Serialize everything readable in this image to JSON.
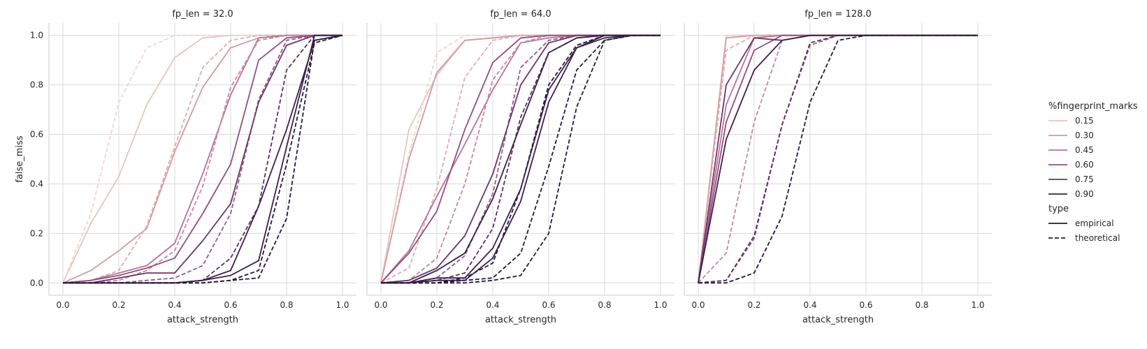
{
  "chart_data": {
    "type": "line",
    "facet_label": "fp_len",
    "xlabel": "attack_strength",
    "ylabel": "false_miss",
    "xlim": [
      -0.05,
      1.05
    ],
    "ylim": [
      -0.05,
      1.05
    ],
    "xticks": [
      0.0,
      0.2,
      0.4,
      0.6,
      0.8,
      1.0
    ],
    "yticks": [
      0.0,
      0.2,
      0.4,
      0.6,
      0.8,
      1.0
    ],
    "grid": true,
    "x": [
      0.0,
      0.1,
      0.2,
      0.3,
      0.4,
      0.5,
      0.6,
      0.7,
      0.8,
      0.9,
      1.0
    ],
    "hue_colors": {
      "0.15": "#e8c4c2",
      "0.30": "#d49aa4",
      "0.45": "#b97394",
      "0.60": "#924f7f",
      "0.75": "#6a3669",
      "0.90": "#3d1f4b"
    },
    "theoretical_colors": {
      "0.15": "#efd6d3",
      "0.30": "#dcaeb5",
      "0.45": "#c288a4",
      "0.60": "#975a86",
      "0.75": "#5c3061",
      "0.90": "#231a3a"
    },
    "panels": [
      {
        "title": "fp_len = 32.0",
        "series": [
          {
            "fingerprint_marks": "0.15",
            "type": "empirical",
            "values": [
              0,
              0.24,
              0.43,
              0.72,
              0.91,
              0.99,
              1.0,
              1.0,
              1.0,
              1.0,
              1.0
            ]
          },
          {
            "fingerprint_marks": "0.15",
            "type": "theoretical",
            "values": [
              0,
              0.28,
              0.73,
              0.95,
              1.0,
              1.0,
              1.0,
              1.0,
              1.0,
              1.0,
              1.0
            ]
          },
          {
            "fingerprint_marks": "0.30",
            "type": "empirical",
            "values": [
              0,
              0.05,
              0.13,
              0.22,
              0.53,
              0.79,
              0.95,
              0.99,
              1.0,
              1.0,
              1.0
            ]
          },
          {
            "fingerprint_marks": "0.30",
            "type": "theoretical",
            "values": [
              0,
              0.01,
              0.05,
              0.23,
              0.55,
              0.87,
              0.98,
              1.0,
              1.0,
              1.0,
              1.0
            ]
          },
          {
            "fingerprint_marks": "0.45",
            "type": "empirical",
            "values": [
              0,
              0.01,
              0.04,
              0.07,
              0.16,
              0.44,
              0.76,
              0.99,
              1.0,
              1.0,
              1.0
            ]
          },
          {
            "fingerprint_marks": "0.45",
            "type": "theoretical",
            "values": [
              0,
              0.0,
              0.01,
              0.05,
              0.13,
              0.39,
              0.79,
              0.98,
              1.0,
              1.0,
              1.0
            ]
          },
          {
            "fingerprint_marks": "0.60",
            "type": "empirical",
            "values": [
              0,
              0.01,
              0.03,
              0.06,
              0.1,
              0.28,
              0.48,
              0.9,
              0.99,
              1.0,
              1.0
            ]
          },
          {
            "fingerprint_marks": "0.60",
            "type": "theoretical",
            "values": [
              0,
              0.0,
              0.0,
              0.01,
              0.02,
              0.07,
              0.28,
              0.74,
              0.98,
              1.0,
              1.0
            ]
          },
          {
            "fingerprint_marks": "0.75",
            "type": "empirical",
            "values": [
              0,
              0.0,
              0.02,
              0.04,
              0.04,
              0.17,
              0.32,
              0.73,
              0.96,
              1.0,
              1.0
            ]
          },
          {
            "fingerprint_marks": "0.75",
            "type": "theoretical",
            "values": [
              0,
              0.0,
              0.0,
              0.0,
              0.0,
              0.01,
              0.1,
              0.31,
              0.86,
              1.0,
              1.0
            ]
          },
          {
            "fingerprint_marks": "0.90",
            "type": "empirical",
            "values": [
              0,
              0.0,
              0.0,
              0.0,
              0.0,
              0.01,
              0.05,
              0.31,
              0.62,
              0.98,
              1.0
            ]
          },
          {
            "fingerprint_marks": "0.90",
            "type": "theoretical",
            "values": [
              0,
              0.0,
              0.0,
              0.0,
              0.0,
              0.0,
              0.01,
              0.05,
              0.48,
              0.97,
              1.0
            ]
          },
          {
            "fingerprint_marks": "0.90",
            "type": "empirical",
            "values": [
              0,
              0.0,
              0.0,
              0.0,
              0.0,
              0.01,
              0.03,
              0.09,
              0.55,
              1.0,
              1.0
            ]
          },
          {
            "fingerprint_marks": "0.90",
            "type": "theoretical",
            "values": [
              0,
              0.0,
              0.0,
              0.0,
              0.0,
              0.0,
              0.01,
              0.02,
              0.26,
              0.98,
              1.0
            ]
          }
        ]
      },
      {
        "title": "fp_len = 64.0",
        "series": [
          {
            "fingerprint_marks": "0.15",
            "type": "empirical",
            "values": [
              0,
              0.62,
              0.84,
              0.98,
              0.99,
              1.0,
              1.0,
              1.0,
              1.0,
              1.0,
              1.0
            ]
          },
          {
            "fingerprint_marks": "0.15",
            "type": "theoretical",
            "values": [
              0,
              0.52,
              0.93,
              1.0,
              1.0,
              1.0,
              1.0,
              1.0,
              1.0,
              1.0,
              1.0
            ]
          },
          {
            "fingerprint_marks": "0.30",
            "type": "empirical",
            "values": [
              0,
              0.5,
              0.85,
              0.98,
              0.99,
              1.0,
              1.0,
              1.0,
              1.0,
              1.0,
              1.0
            ]
          },
          {
            "fingerprint_marks": "0.30",
            "type": "theoretical",
            "values": [
              0,
              0.06,
              0.38,
              0.83,
              0.98,
              1.0,
              1.0,
              1.0,
              1.0,
              1.0,
              1.0
            ]
          },
          {
            "fingerprint_marks": "0.45",
            "type": "empirical",
            "values": [
              0,
              0.13,
              0.35,
              0.56,
              0.78,
              0.97,
              0.99,
              1.0,
              1.0,
              1.0,
              1.0
            ]
          },
          {
            "fingerprint_marks": "0.45",
            "type": "theoretical",
            "values": [
              0,
              0.01,
              0.1,
              0.4,
              0.82,
              0.97,
              1.0,
              1.0,
              1.0,
              1.0,
              1.0
            ]
          },
          {
            "fingerprint_marks": "0.60",
            "type": "empirical",
            "values": [
              0,
              0.12,
              0.29,
              0.62,
              0.89,
              0.99,
              1.0,
              1.0,
              1.0,
              1.0,
              1.0
            ]
          },
          {
            "fingerprint_marks": "0.60",
            "type": "theoretical",
            "values": [
              0,
              0.0,
              0.02,
              0.11,
              0.36,
              0.87,
              0.98,
              1.0,
              1.0,
              1.0,
              1.0
            ]
          },
          {
            "fingerprint_marks": "0.75",
            "type": "empirical",
            "values": [
              0,
              0.01,
              0.06,
              0.19,
              0.44,
              0.8,
              0.97,
              1.0,
              1.0,
              1.0,
              1.0
            ]
          },
          {
            "fingerprint_marks": "0.75",
            "type": "theoretical",
            "values": [
              0,
              0.0,
              0.01,
              0.04,
              0.22,
              0.67,
              0.93,
              0.99,
              1.0,
              1.0,
              1.0
            ]
          },
          {
            "fingerprint_marks": "0.90",
            "type": "empirical",
            "values": [
              0,
              0.0,
              0.05,
              0.12,
              0.34,
              0.64,
              0.93,
              0.99,
              1.0,
              1.0,
              1.0
            ]
          },
          {
            "fingerprint_marks": "0.90",
            "type": "theoretical",
            "values": [
              0,
              0.0,
              0.0,
              0.02,
              0.08,
              0.38,
              0.8,
              0.96,
              1.0,
              1.0,
              1.0
            ]
          },
          {
            "fingerprint_marks": "0.90",
            "type": "empirical",
            "values": [
              0,
              0.0,
              0.02,
              0.02,
              0.14,
              0.38,
              0.78,
              0.95,
              1.0,
              1.0,
              1.0
            ]
          },
          {
            "fingerprint_marks": "0.90",
            "type": "theoretical",
            "values": [
              0,
              0.0,
              0.0,
              0.01,
              0.02,
              0.12,
              0.47,
              0.86,
              0.98,
              1.0,
              1.0
            ]
          },
          {
            "fingerprint_marks": "0.90",
            "type": "empirical",
            "values": [
              0,
              0.0,
              0.01,
              0.01,
              0.1,
              0.33,
              0.73,
              0.95,
              0.99,
              1.0,
              1.0
            ]
          },
          {
            "fingerprint_marks": "0.90",
            "type": "theoretical",
            "values": [
              0,
              0.0,
              0.0,
              0.0,
              0.01,
              0.03,
              0.2,
              0.71,
              0.98,
              1.0,
              1.0
            ]
          }
        ]
      },
      {
        "title": "fp_len = 128.0",
        "series": [
          {
            "fingerprint_marks": "0.15",
            "type": "empirical",
            "values": [
              0,
              1.0,
              1.0,
              1.0,
              1.0,
              1.0,
              1.0,
              1.0,
              1.0,
              1.0,
              1.0
            ]
          },
          {
            "fingerprint_marks": "0.15",
            "type": "theoretical",
            "values": [
              0,
              1.0,
              1.0,
              1.0,
              1.0,
              1.0,
              1.0,
              1.0,
              1.0,
              1.0,
              1.0
            ]
          },
          {
            "fingerprint_marks": "0.30",
            "type": "empirical",
            "values": [
              0,
              0.99,
              1.0,
              1.0,
              1.0,
              1.0,
              1.0,
              1.0,
              1.0,
              1.0,
              1.0
            ]
          },
          {
            "fingerprint_marks": "0.30",
            "type": "theoretical",
            "values": [
              0,
              0.94,
              1.0,
              1.0,
              1.0,
              1.0,
              1.0,
              1.0,
              1.0,
              1.0,
              1.0
            ]
          },
          {
            "fingerprint_marks": "0.45",
            "type": "empirical",
            "values": [
              0,
              0.72,
              0.99,
              1.0,
              1.0,
              1.0,
              1.0,
              1.0,
              1.0,
              1.0,
              1.0
            ]
          },
          {
            "fingerprint_marks": "0.45",
            "type": "theoretical",
            "values": [
              0,
              0.12,
              0.65,
              0.98,
              1.0,
              1.0,
              1.0,
              1.0,
              1.0,
              1.0,
              1.0
            ]
          },
          {
            "fingerprint_marks": "0.60",
            "type": "empirical",
            "values": [
              0,
              0.65,
              0.94,
              1.0,
              1.0,
              1.0,
              1.0,
              1.0,
              1.0,
              1.0,
              1.0
            ]
          },
          {
            "fingerprint_marks": "0.60",
            "type": "theoretical",
            "values": [
              0,
              0.01,
              0.18,
              0.64,
              0.96,
              1.0,
              1.0,
              1.0,
              1.0,
              1.0,
              1.0
            ]
          },
          {
            "fingerprint_marks": "0.75",
            "type": "empirical",
            "values": [
              0,
              0.8,
              0.99,
              0.98,
              1.0,
              1.0,
              1.0,
              1.0,
              1.0,
              1.0,
              1.0
            ]
          },
          {
            "fingerprint_marks": "0.75",
            "type": "theoretical",
            "values": [
              0,
              0.01,
              0.19,
              0.64,
              0.97,
              1.0,
              1.0,
              1.0,
              1.0,
              1.0,
              1.0
            ]
          },
          {
            "fingerprint_marks": "0.90",
            "type": "empirical",
            "values": [
              0,
              0.58,
              0.86,
              0.98,
              1.0,
              1.0,
              1.0,
              1.0,
              1.0,
              1.0,
              1.0
            ]
          },
          {
            "fingerprint_marks": "0.90",
            "type": "theoretical",
            "values": [
              0,
              0.0,
              0.04,
              0.27,
              0.73,
              0.98,
              1.0,
              1.0,
              1.0,
              1.0,
              1.0
            ]
          }
        ]
      }
    ],
    "legend": {
      "placement": "right",
      "hue_title": "%fingerprint_marks",
      "hue_items": [
        "0.15",
        "0.30",
        "0.45",
        "0.60",
        "0.75",
        "0.90"
      ],
      "style_title": "type",
      "style_items": [
        "empirical",
        "theoretical"
      ]
    }
  }
}
